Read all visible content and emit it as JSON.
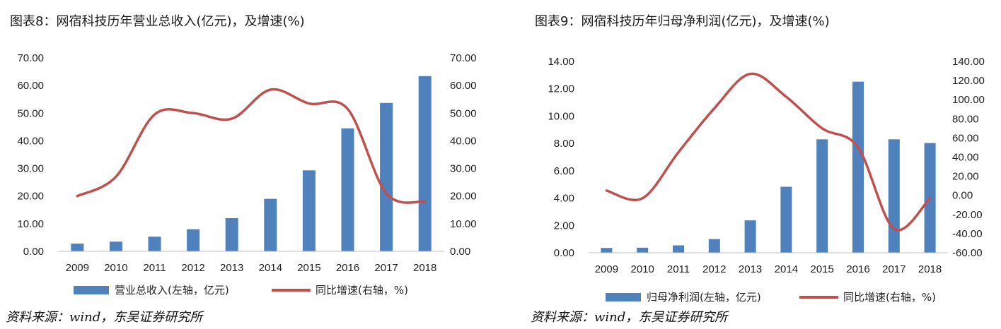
{
  "figures": [
    {
      "title": "图表8：网宿科技历年营业总收入(亿元)，及增速(%)",
      "source": "资料来源：wind，东吴证券研究所",
      "legend": {
        "bar": "营业总收入(左轴，亿元)",
        "line": "同比增速(右轴，%)"
      },
      "left_ticks": [
        "70.00",
        "60.00",
        "50.00",
        "40.00",
        "30.00",
        "20.00",
        "10.00",
        "0.00"
      ],
      "right_ticks": [
        "70.00",
        "60.00",
        "50.00",
        "40.00",
        "30.00",
        "20.00",
        "10.00",
        "0.00"
      ]
    },
    {
      "title": "图表9：网宿科技历年归母净利润(亿元)，及增速(%)",
      "source": "资料来源：wind，东吴证券研究所",
      "legend": {
        "bar": "归母净利润(左轴，亿元)",
        "line": "同比增速(右轴，%)"
      },
      "left_ticks": [
        "14.00",
        "12.00",
        "10.00",
        "8.00",
        "6.00",
        "4.00",
        "2.00",
        "0.00"
      ],
      "right_ticks": [
        "140.00",
        "120.00",
        "100.00",
        "80.00",
        "60.00",
        "40.00",
        "20.00",
        "0.00",
        "-20.00",
        "-40.00",
        "-60.00"
      ]
    }
  ],
  "chart_data": [
    {
      "type": "bar",
      "categories": [
        "2009",
        "2010",
        "2011",
        "2012",
        "2013",
        "2014",
        "2015",
        "2016",
        "2017",
        "2018"
      ],
      "series": [
        {
          "name": "营业总收入(左轴，亿元)",
          "type": "bar",
          "axis": "left",
          "values": [
            2.8,
            3.5,
            5.3,
            8.0,
            12.0,
            19.0,
            29.3,
            44.5,
            53.7,
            63.4
          ]
        },
        {
          "name": "同比增速(右轴，%)",
          "type": "line",
          "axis": "right",
          "values": [
            20.0,
            27.0,
            49.5,
            50.0,
            48.0,
            58.5,
            53.5,
            51.5,
            21.0,
            18.0
          ]
        }
      ],
      "ylim_left": [
        0,
        70
      ],
      "ylim_right": [
        0,
        70
      ],
      "legend_position": "bottom",
      "colors": {
        "bar": "#4F81BD",
        "line": "#C0504D"
      },
      "grid": false
    },
    {
      "type": "bar",
      "categories": [
        "2009",
        "2010",
        "2011",
        "2012",
        "2013",
        "2014",
        "2015",
        "2016",
        "2017",
        "2018"
      ],
      "series": [
        {
          "name": "归母净利润(左轴，亿元)",
          "type": "bar",
          "axis": "left",
          "values": [
            0.35,
            0.37,
            0.54,
            1.0,
            2.37,
            4.83,
            8.3,
            12.52,
            8.3,
            8.03
          ]
        },
        {
          "name": "同比增速(右轴，%)",
          "type": "line",
          "axis": "right",
          "values": [
            5.0,
            -3.0,
            45.0,
            91.0,
            127.0,
            103.0,
            70.0,
            50.0,
            -35.0,
            -3.0
          ]
        }
      ],
      "ylim_left": [
        0,
        14
      ],
      "ylim_right": [
        -60,
        140
      ],
      "legend_position": "bottom",
      "colors": {
        "bar": "#4F81BD",
        "line": "#C0504D"
      },
      "grid": false
    }
  ]
}
